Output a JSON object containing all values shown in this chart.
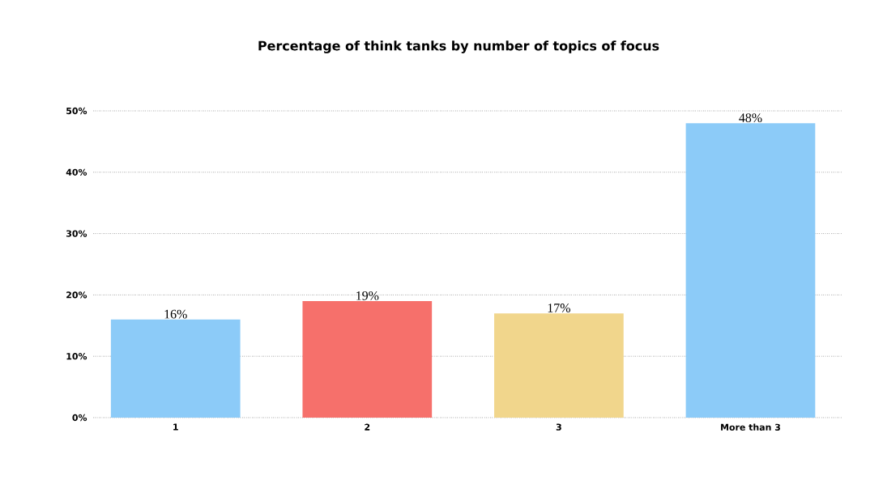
{
  "chart_data": {
    "type": "bar",
    "title": "Percentage of think tanks by number of topics of focus",
    "categories": [
      "1",
      "2",
      "3",
      "More than 3"
    ],
    "values": [
      16,
      19,
      17,
      48
    ],
    "colors": [
      "#8ccbf8",
      "#f6706b",
      "#f1d68c",
      "#8ccbf8"
    ],
    "value_labels": [
      "16%",
      "19%",
      "17%",
      "48%"
    ],
    "ylim": [
      0,
      50
    ],
    "yticks": [
      {
        "value": 0,
        "label": "0%"
      },
      {
        "value": 10,
        "label": "10%"
      },
      {
        "value": 20,
        "label": "20%"
      },
      {
        "value": 30,
        "label": "30%"
      },
      {
        "value": 40,
        "label": "40%"
      },
      {
        "value": 50,
        "label": "50%"
      }
    ],
    "grid": "y"
  }
}
